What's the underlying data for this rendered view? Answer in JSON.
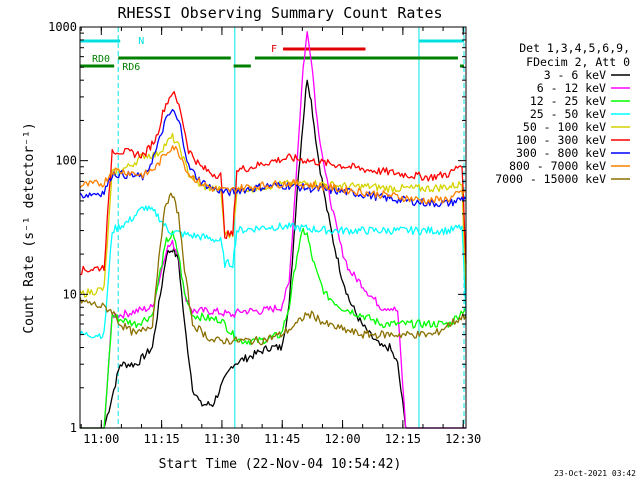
{
  "chart_data": {
    "type": "line",
    "title": "RHESSI Observing Summary Count Rates",
    "xlabel": "Start Time (22-Nov-04 10:54:42)",
    "ylabel": "Count Rate (s⁻¹ detector⁻¹)",
    "yscale": "log",
    "ylim": [
      1,
      1000
    ],
    "xlim_minutes_since_start": [
      0,
      96
    ],
    "x_ticks": [
      {
        "label": "11:00",
        "minutes": 5.3
      },
      {
        "label": "11:15",
        "minutes": 20.3
      },
      {
        "label": "11:30",
        "minutes": 35.3
      },
      {
        "label": "11:45",
        "minutes": 50.3
      },
      {
        "label": "12:00",
        "minutes": 65.3
      },
      {
        "label": "12:15",
        "minutes": 80.3
      },
      {
        "label": "12:30",
        "minutes": 95.3
      }
    ],
    "y_ticks": [
      "1",
      "10",
      "100",
      "1000"
    ],
    "legend_header": [
      "Det 1,3,4,5,6,9,",
      "FDecim 2, Att 0"
    ],
    "legend_position": "right",
    "timestamp": "23-Oct-2021 03:42",
    "annotations": [
      {
        "label": "N",
        "color": "#00e0e0"
      },
      {
        "label": "RD0",
        "color": "#008000"
      },
      {
        "label": "RD6",
        "color": "#008000"
      },
      {
        "label": "F",
        "color": "#e00000"
      }
    ],
    "series": [
      {
        "name": "3 - 6 keV",
        "color": "#000000",
        "points": [
          [
            0,
            1
          ],
          [
            6,
            1
          ],
          [
            10,
            3
          ],
          [
            14,
            3
          ],
          [
            18,
            4
          ],
          [
            20,
            10
          ],
          [
            21.5,
            20
          ],
          [
            23,
            22
          ],
          [
            24.5,
            18
          ],
          [
            26,
            6
          ],
          [
            28,
            2
          ],
          [
            30,
            1.5
          ],
          [
            33,
            1.5
          ],
          [
            35,
            2
          ],
          [
            38,
            3
          ],
          [
            40,
            3.2
          ],
          [
            43,
            3.5
          ],
          [
            47,
            4
          ],
          [
            50,
            4
          ],
          [
            52,
            8
          ],
          [
            54,
            60
          ],
          [
            55.5,
            200
          ],
          [
            56.5,
            420
          ],
          [
            57.5,
            280
          ],
          [
            59,
            120
          ],
          [
            61,
            50
          ],
          [
            63,
            25
          ],
          [
            65,
            14
          ],
          [
            67,
            9
          ],
          [
            70,
            6
          ],
          [
            72,
            5
          ],
          [
            75,
            4
          ],
          [
            77,
            4
          ],
          [
            79,
            3
          ],
          [
            81,
            1
          ],
          [
            84,
            1
          ],
          [
            88,
            1
          ],
          [
            92,
            1
          ],
          [
            96,
            1
          ]
        ]
      },
      {
        "name": "6 - 12 keV",
        "color": "#ff00ff",
        "points": [
          [
            0,
            1
          ],
          [
            6,
            1
          ],
          [
            8,
            7
          ],
          [
            10,
            7
          ],
          [
            14,
            7.5
          ],
          [
            18,
            8
          ],
          [
            20,
            14
          ],
          [
            21.5,
            22
          ],
          [
            23,
            24
          ],
          [
            24.5,
            20
          ],
          [
            26,
            10
          ],
          [
            28,
            7.5
          ],
          [
            33,
            7.5
          ],
          [
            38,
            7
          ],
          [
            40,
            7.5
          ],
          [
            45,
            7.5
          ],
          [
            50,
            8
          ],
          [
            52,
            12
          ],
          [
            54,
            100
          ],
          [
            55.5,
            500
          ],
          [
            56.5,
            900
          ],
          [
            57.5,
            600
          ],
          [
            59,
            200
          ],
          [
            61,
            80
          ],
          [
            63,
            40
          ],
          [
            65,
            22
          ],
          [
            67,
            15
          ],
          [
            70,
            12
          ],
          [
            72,
            10
          ],
          [
            75,
            8
          ],
          [
            77,
            8
          ],
          [
            79,
            7.5
          ],
          [
            81,
            1
          ],
          [
            84,
            1
          ],
          [
            88,
            1
          ],
          [
            92,
            1
          ],
          [
            96,
            1
          ]
        ]
      },
      {
        "name": "12 - 25 keV",
        "color": "#00ff00",
        "points": [
          [
            0,
            1
          ],
          [
            6,
            1
          ],
          [
            8,
            7
          ],
          [
            10,
            6.5
          ],
          [
            14,
            6
          ],
          [
            18,
            7
          ],
          [
            20,
            15
          ],
          [
            21.5,
            25
          ],
          [
            23,
            28
          ],
          [
            24.5,
            20
          ],
          [
            26,
            10
          ],
          [
            28,
            7
          ],
          [
            33,
            6.5
          ],
          [
            35,
            6.5
          ],
          [
            38,
            5
          ],
          [
            40,
            4.5
          ],
          [
            45,
            4.5
          ],
          [
            50,
            5
          ],
          [
            52,
            8
          ],
          [
            54,
            20
          ],
          [
            55.5,
            30
          ],
          [
            56.5,
            28
          ],
          [
            57.5,
            20
          ],
          [
            59,
            14
          ],
          [
            61,
            10
          ],
          [
            65,
            8
          ],
          [
            70,
            7
          ],
          [
            75,
            6
          ],
          [
            81,
            6
          ],
          [
            84,
            6
          ],
          [
            88,
            6
          ],
          [
            92,
            6
          ],
          [
            96,
            8
          ]
        ]
      },
      {
        "name": "25 - 50 keV",
        "color": "#00ffff",
        "points": [
          [
            0,
            5
          ],
          [
            6,
            5
          ],
          [
            8,
            30
          ],
          [
            12,
            35
          ],
          [
            16,
            45
          ],
          [
            19,
            40
          ],
          [
            22,
            30
          ],
          [
            26,
            28
          ],
          [
            30,
            27
          ],
          [
            33,
            26
          ],
          [
            35,
            25
          ],
          [
            36,
            17
          ],
          [
            38,
            17
          ],
          [
            39,
            30
          ],
          [
            43,
            31
          ],
          [
            47,
            32
          ],
          [
            52,
            32
          ],
          [
            57,
            31
          ],
          [
            62,
            30
          ],
          [
            67,
            30
          ],
          [
            72,
            30
          ],
          [
            77,
            30
          ],
          [
            82,
            30
          ],
          [
            87,
            30
          ],
          [
            92,
            30
          ],
          [
            95,
            32
          ],
          [
            96,
            7
          ]
        ]
      },
      {
        "name": "50 - 100 keV",
        "color": "#d4d400",
        "points": [
          [
            0,
            10
          ],
          [
            6,
            11
          ],
          [
            8,
            80
          ],
          [
            12,
            90
          ],
          [
            16,
            110
          ],
          [
            19,
            110
          ],
          [
            21,
            130
          ],
          [
            23,
            150
          ],
          [
            25,
            120
          ],
          [
            27,
            80
          ],
          [
            30,
            65
          ],
          [
            33,
            62
          ],
          [
            35,
            60
          ],
          [
            36,
            28
          ],
          [
            38,
            28
          ],
          [
            39,
            60
          ],
          [
            43,
            62
          ],
          [
            47,
            65
          ],
          [
            52,
            67
          ],
          [
            57,
            68
          ],
          [
            62,
            66
          ],
          [
            67,
            64
          ],
          [
            72,
            64
          ],
          [
            77,
            62
          ],
          [
            82,
            62
          ],
          [
            87,
            62
          ],
          [
            92,
            64
          ],
          [
            95,
            67
          ],
          [
            96,
            11
          ]
        ]
      },
      {
        "name": "100 - 300 keV",
        "color": "#ff0000",
        "points": [
          [
            0,
            15
          ],
          [
            6,
            16
          ],
          [
            8,
            120
          ],
          [
            12,
            115
          ],
          [
            16,
            110
          ],
          [
            19,
            150
          ],
          [
            21,
            250
          ],
          [
            23,
            330
          ],
          [
            25,
            240
          ],
          [
            27,
            120
          ],
          [
            30,
            90
          ],
          [
            33,
            80
          ],
          [
            35,
            78
          ],
          [
            36,
            28
          ],
          [
            38,
            28
          ],
          [
            39,
            85
          ],
          [
            43,
            90
          ],
          [
            47,
            98
          ],
          [
            52,
            105
          ],
          [
            57,
            100
          ],
          [
            62,
            95
          ],
          [
            67,
            90
          ],
          [
            72,
            85
          ],
          [
            77,
            82
          ],
          [
            82,
            78
          ],
          [
            87,
            75
          ],
          [
            92,
            80
          ],
          [
            95,
            95
          ],
          [
            96,
            17
          ]
        ]
      },
      {
        "name": "300 - 800 keV",
        "color": "#0000ff",
        "points": [
          [
            0,
            55
          ],
          [
            6,
            58
          ],
          [
            8,
            80
          ],
          [
            12,
            78
          ],
          [
            16,
            75
          ],
          [
            19,
            120
          ],
          [
            21,
            190
          ],
          [
            23,
            240
          ],
          [
            25,
            180
          ],
          [
            27,
            90
          ],
          [
            30,
            70
          ],
          [
            33,
            62
          ],
          [
            35,
            60
          ],
          [
            36,
            58
          ],
          [
            38,
            58
          ],
          [
            39,
            60
          ],
          [
            43,
            62
          ],
          [
            47,
            65
          ],
          [
            52,
            65
          ],
          [
            57,
            62
          ],
          [
            62,
            60
          ],
          [
            67,
            58
          ],
          [
            72,
            55
          ],
          [
            77,
            52
          ],
          [
            82,
            50
          ],
          [
            87,
            48
          ],
          [
            92,
            48
          ],
          [
            95,
            52
          ],
          [
            96,
            52
          ]
        ]
      },
      {
        "name": "800 - 7000 keV",
        "color": "#ff8000",
        "points": [
          [
            0,
            65
          ],
          [
            6,
            68
          ],
          [
            8,
            85
          ],
          [
            12,
            82
          ],
          [
            16,
            78
          ],
          [
            19,
            90
          ],
          [
            21,
            110
          ],
          [
            23,
            130
          ],
          [
            25,
            110
          ],
          [
            27,
            80
          ],
          [
            30,
            68
          ],
          [
            33,
            62
          ],
          [
            35,
            60
          ],
          [
            36,
            60
          ],
          [
            38,
            60
          ],
          [
            39,
            62
          ],
          [
            43,
            64
          ],
          [
            47,
            66
          ],
          [
            52,
            68
          ],
          [
            57,
            66
          ],
          [
            62,
            63
          ],
          [
            67,
            60
          ],
          [
            72,
            57
          ],
          [
            77,
            55
          ],
          [
            82,
            52
          ],
          [
            87,
            50
          ],
          [
            92,
            52
          ],
          [
            95,
            58
          ],
          [
            96,
            60
          ]
        ]
      },
      {
        "name": "7000 - 15000 keV",
        "color": "#8b7000",
        "points": [
          [
            0,
            9
          ],
          [
            6,
            8
          ],
          [
            8,
            7.5
          ],
          [
            10,
            6
          ],
          [
            14,
            5
          ],
          [
            18,
            6
          ],
          [
            20,
            25
          ],
          [
            21.5,
            50
          ],
          [
            23,
            55
          ],
          [
            24.5,
            40
          ],
          [
            26,
            15
          ],
          [
            28,
            6
          ],
          [
            33,
            4.5
          ],
          [
            38,
            4.5
          ],
          [
            40,
            4.5
          ],
          [
            45,
            4.5
          ],
          [
            50,
            5
          ],
          [
            54,
            6
          ],
          [
            56,
            7
          ],
          [
            58,
            7
          ],
          [
            61,
            6
          ],
          [
            65,
            5.5
          ],
          [
            70,
            5
          ],
          [
            75,
            5
          ],
          [
            81,
            5
          ],
          [
            84,
            5
          ],
          [
            88,
            5
          ],
          [
            92,
            6
          ],
          [
            96,
            7
          ]
        ]
      }
    ]
  }
}
